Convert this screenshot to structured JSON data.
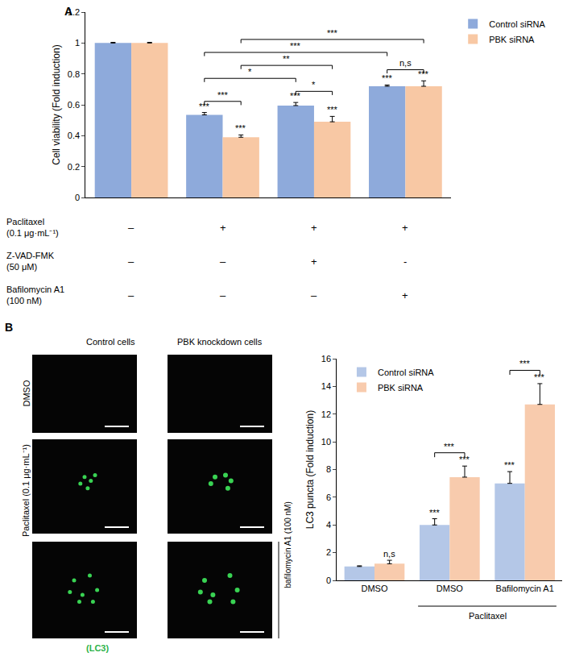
{
  "chart_data": [
    {
      "type": "bar",
      "panel_label": "A",
      "y_label": "Cell viability (Fold induction)",
      "categories": [
        null,
        null,
        null,
        null
      ],
      "ylim": [
        0,
        1.2
      ],
      "yticks": [
        0,
        0.2,
        0.4,
        0.6,
        0.8,
        1,
        1.2
      ],
      "grid": false,
      "legend": "top right",
      "series": [
        {
          "name": "Control siRNA",
          "color": "#8eaadb",
          "values": [
            1,
            0.535,
            0.595,
            0.72
          ],
          "errors": [
            0.004,
            0.015,
            0.02,
            0.008
          ],
          "significance": [
            null,
            "***",
            "***",
            "***"
          ]
        },
        {
          "name": "PBK siRNA",
          "color": "#f8c8a4",
          "values": [
            1,
            0.39,
            0.49,
            0.72
          ],
          "errors": [
            0.004,
            0.015,
            0.035,
            0.035
          ],
          "significance": [
            null,
            "***",
            "***",
            "***"
          ]
        }
      ],
      "comparisons": [
        {
          "a": [
            1,
            0
          ],
          "b": [
            1,
            1
          ],
          "label": "***"
        },
        {
          "a": [
            2,
            0
          ],
          "b": [
            2,
            1
          ],
          "label": "*"
        },
        {
          "a": [
            3,
            0
          ],
          "b": [
            3,
            1
          ],
          "label": "n,s"
        },
        {
          "a": [
            1,
            0
          ],
          "b": [
            2,
            0
          ],
          "label": "*"
        },
        {
          "a": [
            1,
            1
          ],
          "b": [
            2,
            1
          ],
          "label": "**"
        },
        {
          "a": [
            1,
            0
          ],
          "b": [
            3,
            0
          ],
          "label": "***"
        },
        {
          "a": [
            1,
            1
          ],
          "b": [
            3,
            1
          ],
          "label": "***"
        }
      ],
      "conditions": [
        {
          "label": "Paclitaxel",
          "dose": "(0.1 μg·mL⁻¹)",
          "marks": [
            "–",
            "+",
            "+",
            "+"
          ]
        },
        {
          "label": "Z-VAD-FMK",
          "dose": "(50 μM)",
          "marks": [
            "–",
            "–",
            "+",
            "-"
          ]
        },
        {
          "label": "Bafilomycin A1",
          "dose": "(100 nM)",
          "marks": [
            "–",
            "–",
            "–",
            "+"
          ]
        }
      ]
    },
    {
      "type": "bar",
      "y_label": "LC3 puncta (Fold induction)",
      "categories": [
        "DMSO",
        "DMSO",
        "Bafilomycin A1"
      ],
      "group_labels": [
        {
          "text": "Paclitaxel",
          "from": 1,
          "to": 2
        }
      ],
      "ylim": [
        0,
        16
      ],
      "yticks": [
        0,
        2,
        4,
        6,
        8,
        10,
        12,
        14,
        16
      ],
      "grid": false,
      "legend": "top left",
      "series": [
        {
          "name": "Control siRNA",
          "color": "#b4c7e7",
          "values": [
            1,
            4,
            7
          ],
          "errors": [
            0.05,
            0.45,
            0.85
          ],
          "significance": [
            null,
            "***",
            "***"
          ]
        },
        {
          "name": "PBK siRNA",
          "color": "#f8cbad",
          "values": [
            1.2,
            7.45,
            12.7
          ],
          "errors": [
            0.25,
            0.8,
            1.5
          ],
          "significance": [
            "n,s",
            "***",
            "***"
          ]
        }
      ],
      "comparisons": [
        {
          "a": [
            1,
            0
          ],
          "b": [
            1,
            1
          ],
          "label": "***"
        },
        {
          "a": [
            2,
            0
          ],
          "b": [
            2,
            1
          ],
          "label": "***"
        }
      ]
    }
  ],
  "micrographs": {
    "panel_label": "B",
    "columns": [
      "Control cells",
      "PBK knockdown cells"
    ],
    "row_label": "DMSO",
    "group_label": "Paclitaxel (0.1 μg·mL⁻¹)",
    "side_label": "bafilomycin A1 (100 nM)",
    "stain": "(LC3)"
  }
}
